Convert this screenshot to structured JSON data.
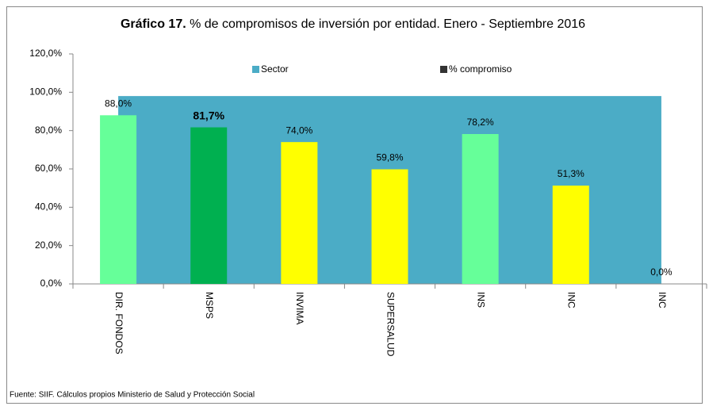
{
  "chart_data": {
    "type": "bar",
    "title_prefix": "Gráfico 17.",
    "title": "% de compromisos de inversión por entidad.  Enero - Septiembre  2016",
    "source": "Fuente: SIIF. Cálculos propios Ministerio de Salud y Protección Social",
    "categories": [
      "DIR. FONDOS",
      "MSPS",
      "INVIMA",
      "SUPERSALUD",
      "INS",
      "INC",
      "INC"
    ],
    "series": [
      {
        "name": "Sector",
        "type": "area",
        "color": "#4bacc6",
        "values": [
          98,
          98,
          98,
          98,
          98,
          98,
          98
        ]
      },
      {
        "name": "% compromiso",
        "type": "bar",
        "color": "#333333",
        "colors": [
          "#66ff99",
          "#00b050",
          "#ffff00",
          "#ffff00",
          "#66ff99",
          "#ffff00",
          "#ffff00"
        ],
        "values": [
          88.0,
          81.7,
          74.0,
          59.8,
          78.2,
          51.3,
          0.0
        ],
        "value_labels": [
          "88,0%",
          "81,7%",
          "74,0%",
          "59,8%",
          "78,2%",
          "51,3%",
          "0,0%"
        ]
      }
    ],
    "ylim": [
      0,
      120
    ],
    "yticks": [
      {
        "value": 0,
        "label": "0,0%"
      },
      {
        "value": 20,
        "label": "20,0%"
      },
      {
        "value": 40,
        "label": "40,0%"
      },
      {
        "value": 60,
        "label": "60,0%"
      },
      {
        "value": 80,
        "label": "80,0%"
      },
      {
        "value": 100,
        "label": "100,0%"
      },
      {
        "value": 120,
        "label": "120,0%"
      }
    ],
    "legend": "top"
  }
}
